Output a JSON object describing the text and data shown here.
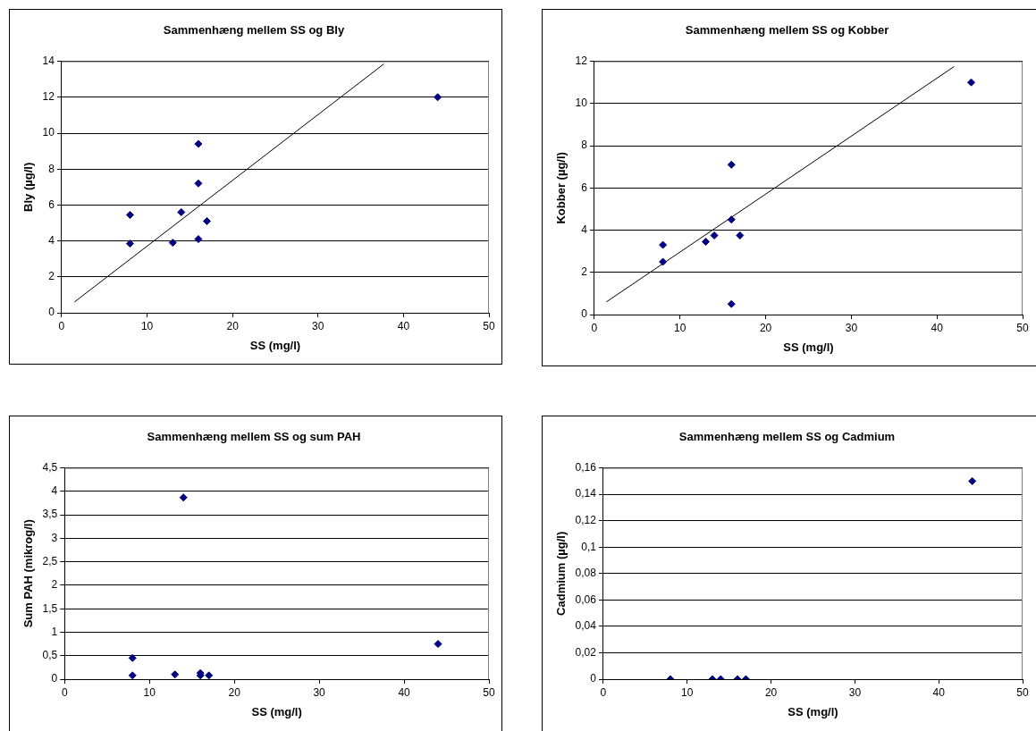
{
  "chart_data": [
    {
      "type": "scatter",
      "title": "Sammenhæng mellem SS og Bly",
      "xlabel": "SS (mg/l)",
      "ylabel": "Bly (µg/l)",
      "xlim": [
        0,
        50
      ],
      "xticks": [
        0,
        10,
        20,
        30,
        40,
        50
      ],
      "ylim": [
        0,
        14
      ],
      "yticks": [
        0,
        2,
        4,
        6,
        8,
        10,
        12,
        14
      ],
      "grid": "y",
      "legend": false,
      "series": [
        {
          "color": "#000080",
          "marker": "diamond",
          "x": [
            8,
            8,
            13,
            14,
            16,
            16,
            16,
            17,
            44
          ],
          "values": [
            5.45,
            3.85,
            3.9,
            5.6,
            9.4,
            7.2,
            4.1,
            5.1,
            12
          ]
        },
        {
          "type": "line",
          "marker": "none",
          "color": "#000000",
          "x": [
            1.5,
            37.7
          ],
          "values": [
            0.6,
            13.85
          ]
        }
      ]
    },
    {
      "type": "scatter",
      "title": "Sammenhæng mellem SS og Kobber",
      "xlabel": "SS (mg/l)",
      "ylabel": "Kobber (µg/l)",
      "xlim": [
        0,
        50
      ],
      "xticks": [
        0,
        10,
        20,
        30,
        40,
        50
      ],
      "ylim": [
        0,
        12
      ],
      "yticks": [
        0,
        2,
        4,
        6,
        8,
        10,
        12
      ],
      "grid": "y",
      "legend": false,
      "series": [
        {
          "color": "#000080",
          "marker": "diamond",
          "x": [
            8,
            8,
            13,
            14,
            16,
            16,
            16,
            17,
            44
          ],
          "values": [
            3.3,
            2.5,
            3.45,
            3.75,
            7.1,
            4.5,
            0.5,
            3.75,
            11
          ]
        },
        {
          "type": "line",
          "marker": "none",
          "color": "#000000",
          "x": [
            1.4,
            42
          ],
          "values": [
            0.6,
            11.75
          ]
        }
      ]
    },
    {
      "type": "scatter",
      "title": "Sammenhæng mellem SS og sum PAH",
      "xlabel": "SS (mg/l)",
      "ylabel": "Sum PAH (mikrog/l)",
      "xlim": [
        0,
        50
      ],
      "xticks": [
        0,
        10,
        20,
        30,
        40,
        50
      ],
      "ylim": [
        0,
        4.5
      ],
      "yticks": [
        0,
        {
          "value": 0.5,
          "label": "0,5"
        },
        1,
        {
          "value": 1.5,
          "label": "1,5"
        },
        2,
        {
          "value": 2.5,
          "label": "2,5"
        },
        3,
        {
          "value": 3.5,
          "label": "3,5"
        },
        4,
        {
          "value": 4.5,
          "label": "4,5"
        }
      ],
      "grid": "y",
      "legend": false,
      "marker": "diamond",
      "series": [
        {
          "color": "#000080",
          "x": [
            8,
            8,
            13,
            14,
            16,
            16,
            17,
            44
          ],
          "values": [
            0.45,
            0.08,
            0.1,
            3.87,
            0.13,
            0.08,
            0.08,
            0.75
          ]
        }
      ]
    },
    {
      "type": "scatter",
      "title": "Sammenhæng mellem SS og Cadmium",
      "xlabel": "SS (mg/l)",
      "ylabel": "Cadmium (µg/l)",
      "xlim": [
        0,
        50
      ],
      "xticks": [
        0,
        10,
        20,
        30,
        40,
        50
      ],
      "ylim": [
        0,
        0.16
      ],
      "yticks": [
        0,
        {
          "value": 0.02,
          "label": "0,02"
        },
        {
          "value": 0.04,
          "label": "0,04"
        },
        {
          "value": 0.06,
          "label": "0,06"
        },
        {
          "value": 0.08,
          "label": "0,08"
        },
        {
          "value": 0.1,
          "label": "0,1"
        },
        {
          "value": 0.12,
          "label": "0,12"
        },
        {
          "value": 0.14,
          "label": "0,14"
        },
        {
          "value": 0.16,
          "label": "0,16"
        }
      ],
      "grid": "y",
      "legend": false,
      "marker": "diamond",
      "series": [
        {
          "color": "#000080",
          "x": [
            8,
            13,
            14,
            16,
            17,
            44
          ],
          "values": [
            0,
            0,
            0,
            0,
            0,
            0.15
          ]
        }
      ]
    }
  ]
}
